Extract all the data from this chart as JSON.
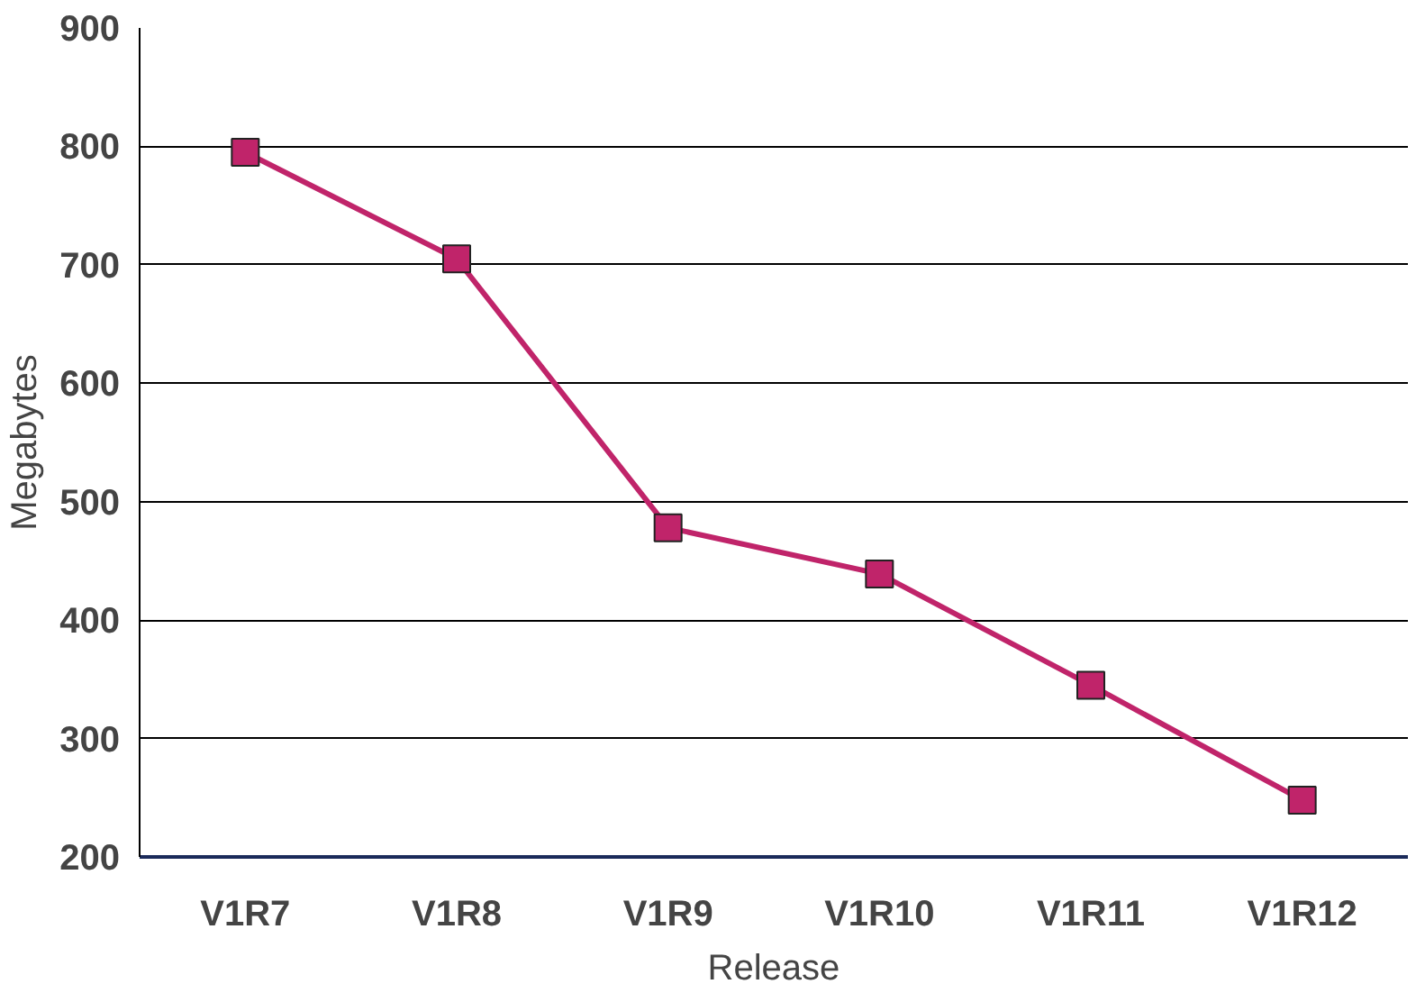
{
  "chart_data": {
    "type": "line",
    "xlabel": "Release",
    "ylabel": "Megabytes",
    "categories": [
      "V1R7",
      "V1R8",
      "V1R9",
      "V1R10",
      "V1R11",
      "V1R12"
    ],
    "series": [
      {
        "color": "#c0246a",
        "values": [
          795,
          705,
          478,
          439,
          345,
          248
        ]
      }
    ],
    "ylim": [
      200,
      900
    ],
    "yticks": [
      200,
      300,
      400,
      500,
      600,
      700,
      800,
      900
    ],
    "grid": "y",
    "marker": "square",
    "line_style": "solid"
  }
}
